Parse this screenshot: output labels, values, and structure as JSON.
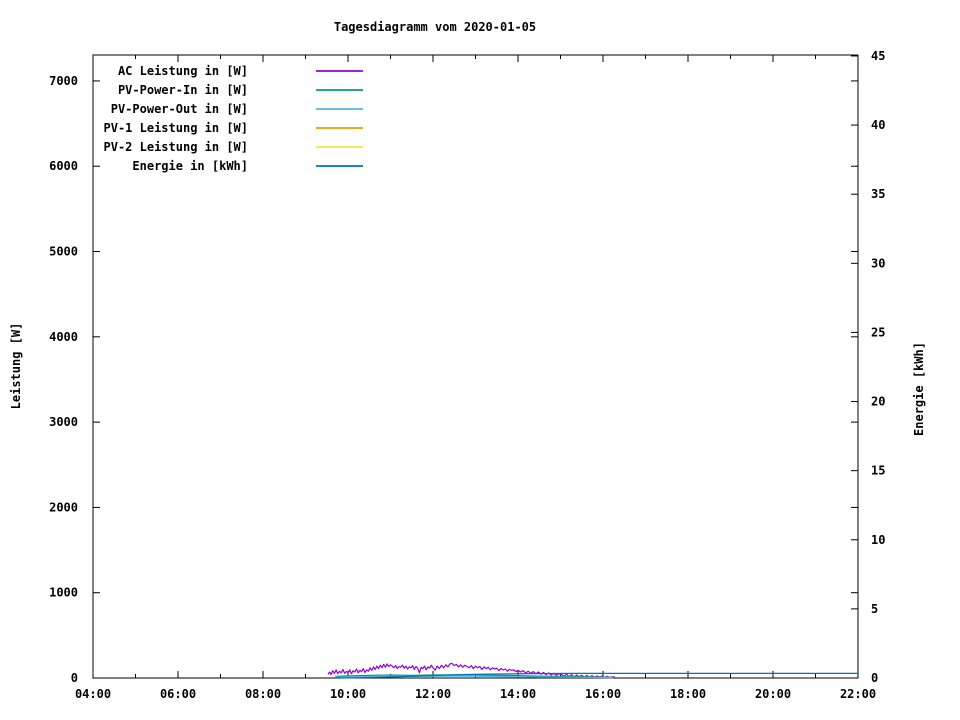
{
  "title": "Tagesdiagramm vom 2020-01-05",
  "chart_data": {
    "type": "line",
    "title": "Tagesdiagramm vom 2020-01-05",
    "xlabel": "",
    "ylabel_left": "Leistung [W]",
    "ylabel_right": "Energie [kWh]",
    "grid": false,
    "legend_position": "top-left-inside",
    "x_range_hours": [
      4,
      22
    ],
    "y_left_range": [
      0,
      7304
    ],
    "y_right_range": [
      0,
      45.07
    ],
    "x_major_hours": [
      4,
      6,
      8,
      10,
      12,
      14,
      16,
      18,
      20,
      22
    ],
    "x_minor_hours": [
      5,
      7,
      9,
      11,
      13,
      15,
      17,
      19,
      21
    ],
    "x_tick_labels": [
      "04:00",
      "06:00",
      "08:00",
      "10:00",
      "12:00",
      "14:00",
      "16:00",
      "18:00",
      "20:00",
      "22:00"
    ],
    "y_left_ticks": [
      0,
      1000,
      2000,
      3000,
      4000,
      5000,
      6000,
      7000
    ],
    "y_right_ticks": [
      0,
      5,
      10,
      15,
      20,
      25,
      30,
      35,
      40,
      45
    ],
    "series": [
      {
        "name": "AC Leistung in [W]",
        "color": "#9400d3",
        "axis": "left",
        "points": [
          [
            9.53,
            45
          ],
          [
            9.57,
            70
          ],
          [
            9.6,
            40
          ],
          [
            9.64,
            85
          ],
          [
            9.68,
            55
          ],
          [
            9.72,
            95
          ],
          [
            9.76,
            50
          ],
          [
            9.8,
            80
          ],
          [
            9.84,
            60
          ],
          [
            9.88,
            100
          ],
          [
            9.92,
            55
          ],
          [
            9.96,
            75
          ],
          [
            10.0,
            65
          ],
          [
            10.04,
            95
          ],
          [
            10.08,
            50
          ],
          [
            10.12,
            85
          ],
          [
            10.16,
            70
          ],
          [
            10.2,
            105
          ],
          [
            10.24,
            60
          ],
          [
            10.28,
            90
          ],
          [
            10.32,
            75
          ],
          [
            10.36,
            110
          ],
          [
            10.4,
            65
          ],
          [
            10.44,
            95
          ],
          [
            10.48,
            80
          ],
          [
            10.52,
            120
          ],
          [
            10.56,
            90
          ],
          [
            10.6,
            130
          ],
          [
            10.64,
            100
          ],
          [
            10.68,
            140
          ],
          [
            10.72,
            110
          ],
          [
            10.76,
            150
          ],
          [
            10.8,
            120
          ],
          [
            10.84,
            160
          ],
          [
            10.88,
            125
          ],
          [
            10.92,
            165
          ],
          [
            10.96,
            135
          ],
          [
            11.0,
            155
          ],
          [
            11.04,
            140
          ],
          [
            11.08,
            120
          ],
          [
            11.12,
            145
          ],
          [
            11.16,
            110
          ],
          [
            11.2,
            135
          ],
          [
            11.24,
            125
          ],
          [
            11.28,
            150
          ],
          [
            11.32,
            115
          ],
          [
            11.36,
            140
          ],
          [
            11.4,
            105
          ],
          [
            11.44,
            130
          ],
          [
            11.48,
            120
          ],
          [
            11.52,
            145
          ],
          [
            11.56,
            100
          ],
          [
            11.6,
            135
          ],
          [
            11.64,
            115
          ],
          [
            11.68,
            60
          ],
          [
            11.72,
            125
          ],
          [
            11.76,
            110
          ],
          [
            11.8,
            140
          ],
          [
            11.84,
            95
          ],
          [
            11.88,
            130
          ],
          [
            11.92,
            115
          ],
          [
            11.96,
            150
          ],
          [
            12.0,
            120
          ],
          [
            12.05,
            90
          ],
          [
            12.1,
            140
          ],
          [
            12.15,
            110
          ],
          [
            12.2,
            150
          ],
          [
            12.25,
            120
          ],
          [
            12.3,
            155
          ],
          [
            12.35,
            130
          ],
          [
            12.4,
            165
          ],
          [
            12.45,
            170
          ],
          [
            12.5,
            145
          ],
          [
            12.55,
            160
          ],
          [
            12.6,
            130
          ],
          [
            12.65,
            155
          ],
          [
            12.7,
            125
          ],
          [
            12.75,
            150
          ],
          [
            12.8,
            135
          ],
          [
            12.85,
            120
          ],
          [
            12.9,
            145
          ],
          [
            12.95,
            110
          ],
          [
            13.0,
            140
          ],
          [
            13.05,
            120
          ],
          [
            13.1,
            135
          ],
          [
            13.15,
            100
          ],
          [
            13.2,
            130
          ],
          [
            13.25,
            110
          ],
          [
            13.3,
            125
          ],
          [
            13.35,
            95
          ],
          [
            13.4,
            120
          ],
          [
            13.45,
            105
          ],
          [
            13.5,
            115
          ],
          [
            13.55,
            85
          ],
          [
            13.6,
            110
          ],
          [
            13.65,
            95
          ],
          [
            13.7,
            105
          ],
          [
            13.75,
            80
          ],
          [
            13.8,
            100
          ],
          [
            13.85,
            90
          ],
          [
            13.9,
            95
          ],
          [
            13.95,
            75
          ],
          [
            14.0,
            90
          ],
          [
            14.06,
            70
          ],
          [
            14.12,
            85
          ],
          [
            14.18,
            60
          ],
          [
            14.24,
            80
          ],
          [
            14.3,
            55
          ],
          [
            14.36,
            75
          ],
          [
            14.42,
            50
          ],
          [
            14.48,
            70
          ],
          [
            14.54,
            45
          ],
          [
            14.6,
            65
          ],
          [
            14.66,
            40
          ],
          [
            14.72,
            60
          ],
          [
            14.78,
            35
          ],
          [
            14.84,
            55
          ],
          [
            14.9,
            30
          ],
          [
            14.96,
            50
          ],
          [
            15.02,
            40
          ],
          [
            15.08,
            20
          ],
          [
            15.14,
            45
          ],
          [
            15.2,
            15
          ],
          [
            15.26,
            40
          ],
          [
            15.32,
            10
          ],
          [
            15.38,
            35
          ],
          [
            15.44,
            15
          ],
          [
            15.5,
            30
          ],
          [
            15.56,
            10
          ],
          [
            15.62,
            30
          ],
          [
            15.68,
            12
          ],
          [
            15.74,
            28
          ],
          [
            15.8,
            8
          ],
          [
            15.86,
            25
          ],
          [
            15.92,
            10
          ],
          [
            15.98,
            22
          ],
          [
            16.04,
            8
          ],
          [
            16.1,
            20
          ],
          [
            16.16,
            6
          ],
          [
            16.22,
            15
          ],
          [
            16.28,
            10
          ]
        ]
      },
      {
        "name": "PV-Power-In in [W]",
        "color": "#009e73",
        "axis": "left",
        "points": [
          [
            9.7,
            20
          ],
          [
            10.0,
            25
          ],
          [
            10.5,
            30
          ],
          [
            11.0,
            35
          ],
          [
            11.5,
            32
          ],
          [
            12.0,
            35
          ],
          [
            12.5,
            38
          ],
          [
            13.0,
            35
          ],
          [
            13.5,
            30
          ],
          [
            14.0,
            28
          ],
          [
            14.5,
            22
          ],
          [
            15.0,
            18
          ],
          [
            15.5,
            14
          ],
          [
            16.0,
            10
          ],
          [
            16.25,
            8
          ]
        ]
      },
      {
        "name": "PV-Power-Out in [W]",
        "color": "#56b4e9",
        "axis": "left",
        "points": [
          [
            9.7,
            10
          ],
          [
            10.0,
            14
          ],
          [
            10.5,
            18
          ],
          [
            11.0,
            20
          ],
          [
            11.5,
            19
          ],
          [
            12.0,
            20
          ],
          [
            12.5,
            22
          ],
          [
            13.0,
            20
          ],
          [
            13.5,
            17
          ],
          [
            14.0,
            15
          ],
          [
            14.5,
            12
          ],
          [
            15.0,
            10
          ],
          [
            15.5,
            8
          ],
          [
            16.0,
            6
          ],
          [
            16.25,
            5
          ]
        ]
      },
      {
        "name": "PV-1 Leistung in [W]",
        "color": "#e69f00",
        "axis": "left",
        "points": []
      },
      {
        "name": "PV-2 Leistung in [W]",
        "color": "#f0e442",
        "axis": "left",
        "points": []
      },
      {
        "name": "Energie in [kWh]",
        "color": "#0072b2",
        "axis": "right",
        "points": [
          [
            9.8,
            0.0
          ],
          [
            10.3,
            0.02
          ],
          [
            10.8,
            0.06
          ],
          [
            11.3,
            0.11
          ],
          [
            11.8,
            0.16
          ],
          [
            12.3,
            0.21
          ],
          [
            12.8,
            0.25
          ],
          [
            13.3,
            0.28
          ],
          [
            13.8,
            0.3
          ],
          [
            14.3,
            0.315
          ],
          [
            14.8,
            0.325
          ],
          [
            15.3,
            0.33
          ],
          [
            16.5,
            0.335
          ],
          [
            22.0,
            0.335
          ]
        ]
      }
    ]
  }
}
